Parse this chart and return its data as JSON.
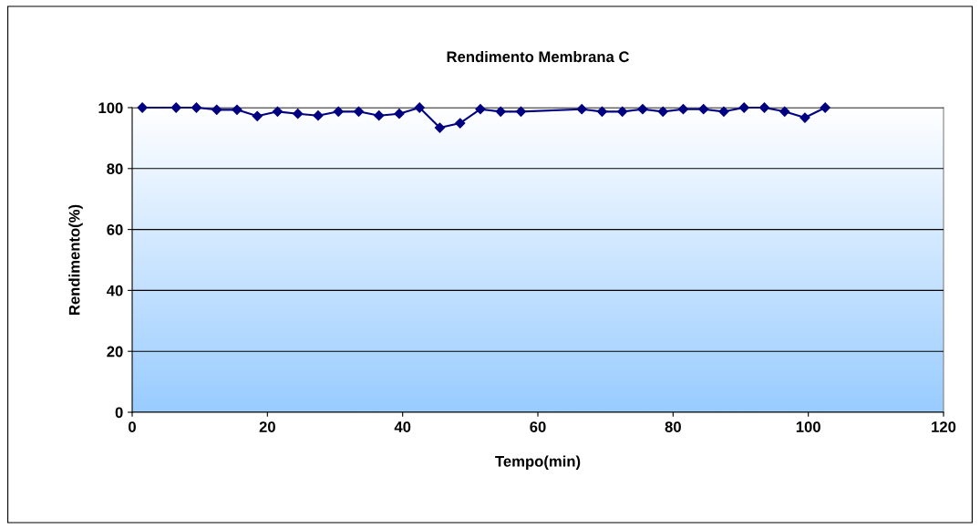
{
  "chart_data": {
    "type": "line",
    "title": "Rendimento Membrana C",
    "xlabel": "Tempo(min)",
    "ylabel": "Rendimento(%)",
    "series": [
      {
        "color": "#000080",
        "x": [
          1.5,
          6.5,
          9.5,
          12.5,
          15.5,
          18.5,
          21.5,
          24.5,
          27.5,
          30.5,
          33.5,
          36.5,
          39.5,
          42.5,
          45.5,
          48.5,
          51.5,
          54.5,
          57.5,
          66.5,
          69.5,
          72.5,
          75.5,
          78.5,
          81.5,
          84.5,
          87.5,
          90.5,
          93.5,
          96.5,
          99.5,
          102.5
        ],
        "values": [
          100,
          100,
          100,
          99.3,
          99.3,
          97.2,
          98.7,
          98,
          97.4,
          98.7,
          98.7,
          97.4,
          98,
          100,
          93.4,
          94.9,
          99.5,
          98.7,
          98.7,
          99.5,
          98.7,
          98.7,
          99.5,
          98.7,
          99.5,
          99.5,
          98.7,
          100,
          100,
          98.7,
          96.7,
          100
        ]
      }
    ],
    "xlim": [
      0,
      120
    ],
    "xticks": [
      0,
      20,
      40,
      60,
      80,
      100,
      120
    ],
    "ylim": [
      0,
      100
    ],
    "yticks": [
      0,
      20,
      40,
      60,
      80,
      100
    ],
    "grid": "y",
    "marker": "diamond",
    "line_style": "solid",
    "legend": false
  }
}
